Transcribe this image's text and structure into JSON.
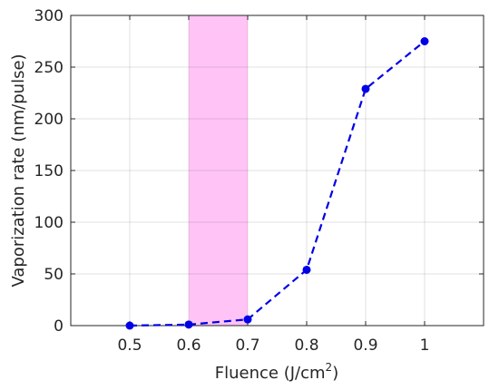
{
  "chart_data": {
    "type": "line",
    "title": "",
    "xlabel": "Fluence (J/cm",
    "xlabel_sup": "2",
    "xlabel_close": ")",
    "ylabel": "Vaporization rate (nm/pulse)",
    "xlim": [
      0.4,
      1.1
    ],
    "ylim": [
      0,
      300
    ],
    "xticks": [
      0.5,
      0.6,
      0.7,
      0.8,
      0.9,
      1.0
    ],
    "xtick_labels": [
      "0.5",
      "0.6",
      "0.7",
      "0.8",
      "0.9",
      "1"
    ],
    "yticks": [
      0,
      50,
      100,
      150,
      200,
      250,
      300
    ],
    "ytick_labels": [
      "0",
      "50",
      "100",
      "150",
      "200",
      "250",
      "300"
    ],
    "grid": true,
    "highlight_region": {
      "x": [
        0.6,
        0.7
      ],
      "color": "#ffc4f5"
    },
    "series": [
      {
        "x": [
          0.5,
          0.6,
          0.7,
          0.8,
          0.9,
          1.0
        ],
        "y": [
          0,
          1,
          6,
          54,
          229,
          275
        ],
        "color": "#0000e6",
        "line_style": "dashed",
        "marker": "circle"
      }
    ]
  }
}
